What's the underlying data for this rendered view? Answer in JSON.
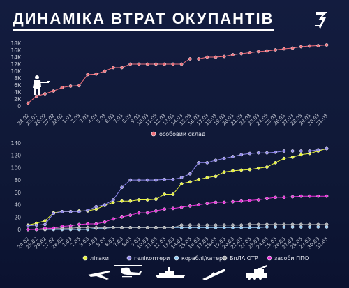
{
  "title": "ДИНАМІКА ВТРАТ ОКУПАНТІВ",
  "logo_text": "3",
  "dates": [
    "24.02",
    "25.02",
    "26.02",
    "27.02",
    "28.02",
    "1.03",
    "2.03",
    "3.03",
    "4.03",
    "5.03",
    "6.03",
    "7.03",
    "8.03",
    "9.03",
    "10.03",
    "11.03",
    "12.03",
    "13.03",
    "14.03",
    "15.03",
    "16.03",
    "17.03",
    "18.03",
    "19.03",
    "20.03",
    "21.03",
    "22.03",
    "23.03",
    "24.03",
    "25.03",
    "26.03",
    "27.03",
    "28.03",
    "29.03",
    "30.03",
    "31.03"
  ],
  "colors": {
    "personnel": "#ef6f7a",
    "planes": "#e8f23a",
    "helicopters": "#8e86ea",
    "ships": "#8ec6f0",
    "uav": "#a6a8ab",
    "aa": "#e62ed6",
    "axis": "#c8ccd8",
    "grid": "#2a3458"
  },
  "chart_data": [
    {
      "type": "line",
      "y_ticks": [
        "0",
        "2K",
        "4K",
        "6K",
        "8K",
        "10K",
        "12K",
        "14K",
        "16K",
        "18K"
      ],
      "ylim": [
        0,
        18000
      ],
      "series": [
        {
          "name": "особовий склад",
          "key": "personnel",
          "values": [
            800,
            2800,
            3500,
            4300,
            5300,
            5710,
            5840,
            9000,
            9166,
            10000,
            11000,
            11000,
            12000,
            12000,
            12000,
            12000,
            12000,
            12000,
            12000,
            13500,
            13500,
            14000,
            14000,
            14200,
            14700,
            15000,
            15300,
            15600,
            15800,
            16100,
            16400,
            16600,
            17000,
            17200,
            17300,
            17500
          ]
        }
      ]
    },
    {
      "type": "line",
      "y_ticks": [
        "0",
        "20",
        "40",
        "60",
        "80",
        "100",
        "120",
        "140"
      ],
      "ylim": [
        0,
        140
      ],
      "series": [
        {
          "name": "літаки",
          "key": "planes",
          "values": [
            7,
            10,
            14,
            27,
            29,
            29,
            30,
            30,
            33,
            39,
            44,
            46,
            46,
            48,
            48,
            49,
            57,
            57,
            74,
            77,
            81,
            84,
            86,
            93,
            95,
            96,
            97,
            99,
            101,
            108,
            115,
            117,
            121,
            123,
            127,
            131
          ]
        },
        {
          "name": "гелікоптери",
          "key": "helicopters",
          "values": [
            6,
            7,
            8,
            26,
            29,
            29,
            29,
            31,
            37,
            40,
            48,
            68,
            80,
            80,
            80,
            80,
            81,
            81,
            84,
            90,
            108,
            108,
            112,
            115,
            118,
            121,
            123,
            124,
            124,
            125,
            127,
            127,
            127,
            127,
            129,
            131
          ]
        },
        {
          "name": "кораблі/катери",
          "key": "ships",
          "values": [
            0,
            0,
            0,
            0,
            0,
            0,
            0,
            0,
            2,
            2,
            3,
            3,
            3,
            3,
            3,
            3,
            3,
            3,
            3,
            3,
            3,
            3,
            3,
            3,
            3,
            3,
            3,
            3,
            4,
            4,
            4,
            4,
            4,
            4,
            4,
            4
          ]
        },
        {
          "name": "БпЛА ОТР",
          "key": "uav",
          "values": [
            0,
            0,
            0,
            2,
            2,
            2,
            3,
            3,
            3,
            3,
            3,
            3,
            3,
            3,
            3,
            3,
            3,
            3,
            7,
            7,
            7,
            7,
            7,
            7,
            7,
            7,
            8,
            8,
            8,
            8,
            8,
            8,
            8,
            8,
            8,
            8
          ]
        },
        {
          "name": "засоби ППО",
          "key": "aa",
          "values": [
            0,
            0,
            2,
            2,
            5,
            6,
            8,
            9,
            9,
            12,
            17,
            20,
            23,
            27,
            27,
            30,
            33,
            34,
            36,
            38,
            40,
            42,
            44,
            44,
            45,
            46,
            47,
            48,
            50,
            52,
            52,
            53,
            54,
            54,
            54,
            54
          ]
        }
      ]
    }
  ],
  "legend1": [
    {
      "key": "personnel",
      "label": "особовий склад"
    }
  ],
  "legend2": [
    {
      "key": "planes",
      "label": "літаки"
    },
    {
      "key": "helicopters",
      "label": "гелікоптери"
    },
    {
      "key": "ships",
      "label": "кораблі/катери"
    },
    {
      "key": "uav",
      "label": "БпЛА ОТР"
    },
    {
      "key": "aa",
      "label": "засоби ППО"
    }
  ],
  "icons": [
    "soldier-icon",
    "plane-icon",
    "helicopter-icon",
    "ship-icon",
    "missile-icon",
    "aa-system-icon"
  ]
}
